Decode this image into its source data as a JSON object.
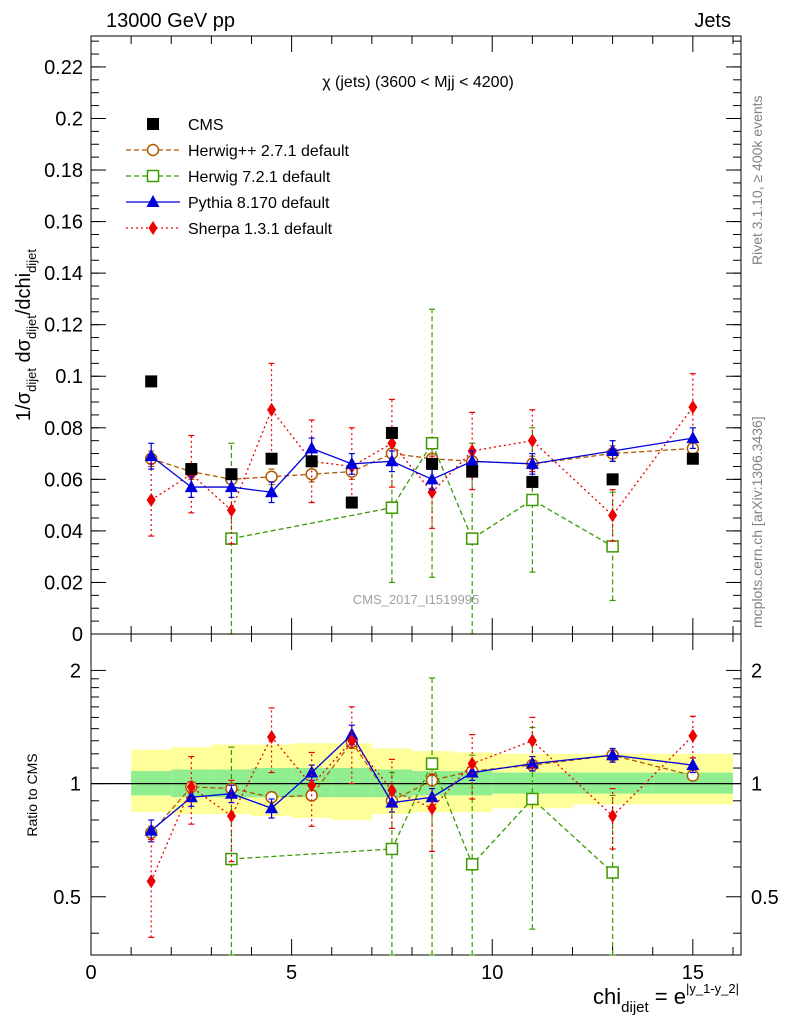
{
  "header": {
    "left": "13000 GeV pp",
    "right": "Jets",
    "rivet": "Rivet 3.1.10, ≥ 400k events",
    "mcplots": "mcplots.cern.ch [arXiv:1306.3436]"
  },
  "colors": {
    "CMS": "#000000",
    "Herwig++ 2.7.1 default": "#b05a00",
    "Herwig 7.2.1 default": "#3a9a00",
    "Pythia 8.170 default": "#0000dd",
    "Sherpa 1.3.1 default": "#ee0000",
    "band_inner": "#90ee90",
    "band_outer": "#ffff99"
  },
  "chart_data": [
    {
      "type": "scatter",
      "title": "χ (jets) (3600 < Mjj < 4200)",
      "ylabel": "1/σ_dijet dσ_dijet/dchi_dijet",
      "watermark": "CMS_2017_I1519995",
      "xlim": [
        0,
        16.2
      ],
      "ylim": [
        0,
        0.232
      ],
      "yticks": [
        "0",
        "0.02",
        "0.04",
        "0.06",
        "0.08",
        "0.1",
        "0.12",
        "0.14",
        "0.16",
        "0.18",
        "0.2",
        "0.22"
      ],
      "legend_position": "top-left",
      "x": [
        1.5,
        2.5,
        3.5,
        4.5,
        5.5,
        6.5,
        7.5,
        8.5,
        9.5,
        11,
        13,
        15
      ],
      "series": [
        {
          "name": "CMS",
          "marker": "square-filled",
          "values": [
            0.098,
            0.064,
            0.062,
            0.068,
            0.067,
            0.051,
            0.078,
            0.066,
            0.063,
            0.059,
            0.06,
            0.068
          ]
        },
        {
          "name": "Herwig++ 2.7.1 default",
          "marker": "circle-open",
          "line": "dashed",
          "values": [
            0.068,
            0.063,
            0.06,
            0.061,
            0.062,
            0.063,
            0.07,
            0.068,
            0.067,
            0.066,
            0.07,
            0.072
          ],
          "errors": [
            0.003,
            0.003,
            0.003,
            0.003,
            0.003,
            0.003,
            0.004,
            0.004,
            0.003,
            0.003,
            0.003,
            0.003
          ]
        },
        {
          "name": "Herwig 7.2.1 default",
          "marker": "square-open",
          "line": "dashed",
          "values": [
            null,
            null,
            0.037,
            null,
            null,
            null,
            0.049,
            0.074,
            0.037,
            0.052,
            0.034,
            null
          ],
          "errors": [
            null,
            null,
            0.037,
            null,
            null,
            null,
            0.029,
            0.052,
            0.037,
            0.028,
            0.021,
            null
          ]
        },
        {
          "name": "Pythia 8.170 default",
          "marker": "triangle-filled",
          "line": "solid",
          "values": [
            0.069,
            0.057,
            0.057,
            0.055,
            0.072,
            0.066,
            0.067,
            0.06,
            0.067,
            0.066,
            0.071,
            0.076
          ],
          "errors": [
            0.005,
            0.004,
            0.004,
            0.004,
            0.004,
            0.004,
            0.004,
            0.004,
            0.004,
            0.004,
            0.004,
            0.004
          ]
        },
        {
          "name": "Sherpa 1.3.1 default",
          "marker": "diamond-filled",
          "line": "dotted",
          "values": [
            0.052,
            0.062,
            0.048,
            0.087,
            0.067,
            0.065,
            0.074,
            0.055,
            0.071,
            0.075,
            0.046,
            0.088
          ],
          "errors": [
            0.014,
            0.015,
            0.013,
            0.018,
            0.016,
            0.015,
            0.017,
            0.014,
            0.015,
            0.012,
            0.01,
            0.013
          ]
        }
      ]
    },
    {
      "type": "scatter",
      "ylabel": "Ratio to CMS",
      "xlabel": "chi_dijet = e^|y_1-y_2|",
      "xlim": [
        0,
        16.2
      ],
      "ylim": [
        0.35,
        2.5
      ],
      "scale": "log",
      "xticks": [
        "0",
        "5",
        "10",
        "15"
      ],
      "yticks": [
        "0.5",
        "1",
        "2"
      ],
      "x": [
        1.5,
        2.5,
        3.5,
        4.5,
        5.5,
        6.5,
        7.5,
        8.5,
        9.5,
        11,
        13,
        15
      ],
      "bands": {
        "edges": [
          1,
          2,
          3,
          4,
          5,
          6,
          7,
          8,
          9,
          10,
          12,
          14,
          16
        ],
        "inner_lo": [
          0.93,
          0.92,
          0.92,
          0.92,
          0.92,
          0.92,
          0.92,
          0.93,
          0.93,
          0.94,
          0.94,
          0.94
        ],
        "inner_hi": [
          1.08,
          1.09,
          1.09,
          1.1,
          1.1,
          1.1,
          1.09,
          1.08,
          1.08,
          1.07,
          1.07,
          1.07
        ],
        "outer_lo": [
          0.84,
          0.83,
          0.83,
          0.82,
          0.81,
          0.8,
          0.83,
          0.84,
          0.84,
          0.86,
          0.88,
          0.88
        ],
        "outer_hi": [
          1.23,
          1.25,
          1.27,
          1.27,
          1.28,
          1.28,
          1.24,
          1.22,
          1.21,
          1.2,
          1.2,
          1.2
        ]
      },
      "series": [
        {
          "name": "Herwig++ 2.7.1 default",
          "values": [
            0.74,
            0.98,
            0.97,
            0.92,
            0.93,
            1.29,
            0.9,
            1.02,
            1.08,
            1.12,
            1.19,
            1.05
          ],
          "errors": [
            0.03,
            0.03,
            0.03,
            0.03,
            0.03,
            0.05,
            0.03,
            0.03,
            0.03,
            0.03,
            0.03,
            0.03
          ]
        },
        {
          "name": "Herwig 7.2.1 default",
          "values": [
            null,
            null,
            0.63,
            null,
            null,
            null,
            0.67,
            1.13,
            0.61,
            0.91,
            0.58,
            null
          ],
          "errors": [
            null,
            null,
            0.62,
            null,
            null,
            null,
            0.4,
            0.78,
            0.58,
            0.5,
            0.35,
            null
          ]
        },
        {
          "name": "Pythia 8.170 default",
          "values": [
            0.75,
            0.92,
            0.94,
            0.86,
            1.07,
            1.35,
            0.89,
            0.92,
            1.07,
            1.13,
            1.19,
            1.12
          ],
          "errors": [
            0.05,
            0.05,
            0.05,
            0.05,
            0.05,
            0.08,
            0.05,
            0.05,
            0.05,
            0.05,
            0.05,
            0.05
          ]
        },
        {
          "name": "Sherpa 1.3.1 default",
          "values": [
            0.55,
            0.98,
            0.82,
            1.33,
            0.99,
            1.3,
            0.96,
            0.86,
            1.13,
            1.3,
            0.82,
            1.34
          ],
          "errors": [
            0.16,
            0.2,
            0.2,
            0.26,
            0.22,
            0.3,
            0.2,
            0.2,
            0.22,
            0.2,
            0.15,
            0.17
          ]
        }
      ]
    }
  ]
}
